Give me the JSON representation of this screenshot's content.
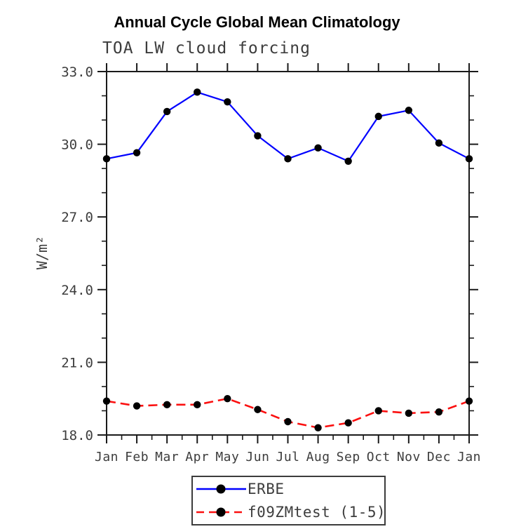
{
  "chart_data": {
    "type": "line",
    "title": "Annual Cycle Global Mean Climatology",
    "subtitle": "TOA LW cloud forcing",
    "ylabel": "W/m²",
    "xlabel": "",
    "categories": [
      "Jan",
      "Feb",
      "Mar",
      "Apr",
      "May",
      "Jun",
      "Jul",
      "Aug",
      "Sep",
      "Oct",
      "Nov",
      "Dec",
      "Jan"
    ],
    "ylim": [
      18.0,
      33.0
    ],
    "y_ticks": [
      "18.0",
      "21.0",
      "24.0",
      "27.0",
      "30.0",
      "33.0"
    ],
    "y_major_step": 3.0,
    "y_minor_step": 1.0,
    "x_minor_step": 0.5,
    "grid": false,
    "legend_position": "bottom-center",
    "frame_color": "#1a1a1a",
    "marker": {
      "shape": "circle",
      "color": "#000000"
    },
    "series": [
      {
        "name": "ERBE",
        "color": "#0000ff",
        "style": "solid",
        "values": [
          29.4,
          29.65,
          31.35,
          32.15,
          31.75,
          30.35,
          29.4,
          29.85,
          29.3,
          31.15,
          31.4,
          30.05,
          29.4
        ]
      },
      {
        "name": "f09ZMtest (1-5)",
        "color": "#fb1010",
        "style": "dashed",
        "values": [
          19.4,
          19.2,
          19.25,
          19.25,
          19.5,
          19.05,
          18.55,
          18.3,
          18.5,
          19.0,
          18.9,
          18.95,
          19.4
        ]
      }
    ]
  }
}
